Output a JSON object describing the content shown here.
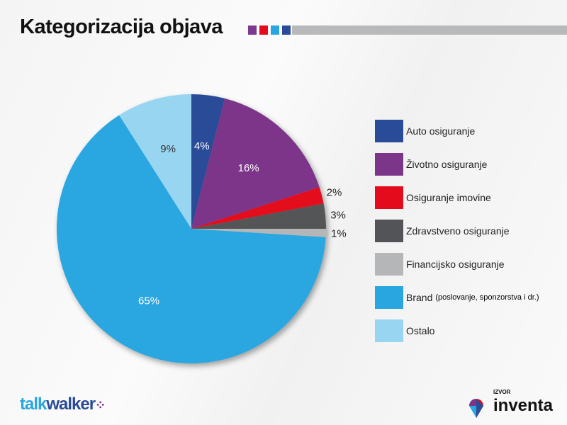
{
  "title": "Kategorizacija objava",
  "title_squares": [
    "#7b3a8f",
    "#e30b1c",
    "#29a6e0",
    "#2a4b98"
  ],
  "chart_data": {
    "type": "pie",
    "start": "top",
    "direction": "clockwise",
    "legend_position": "right",
    "slices": [
      {
        "label": "Auto osiguranje",
        "value": 4,
        "display": "4%",
        "color": "#2a4b98"
      },
      {
        "label": "Životno osiguranje",
        "value": 16,
        "display": "16%",
        "color": "#7b3589"
      },
      {
        "label": "Osiguranje imovine",
        "value": 2,
        "display": "2%",
        "color": "#e30b1c"
      },
      {
        "label": "Zdravstveno osiguranje",
        "value": 3,
        "display": "3%",
        "color": "#525457"
      },
      {
        "label": "Financijsko osiguranje",
        "value": 1,
        "display": "1%",
        "color": "#b5b6b8"
      },
      {
        "label": "Brand",
        "label_note": "(poslovanje, sponzorstva i dr.)",
        "value": 65,
        "display": "65%",
        "color": "#29a6e0"
      },
      {
        "label": "Ostalo",
        "value": 9,
        "display": "9%",
        "color": "#98d5f1"
      }
    ]
  },
  "footer": {
    "left_logo": "talkwalker",
    "source_label": "IZVOR",
    "right_logo": "inventa"
  }
}
